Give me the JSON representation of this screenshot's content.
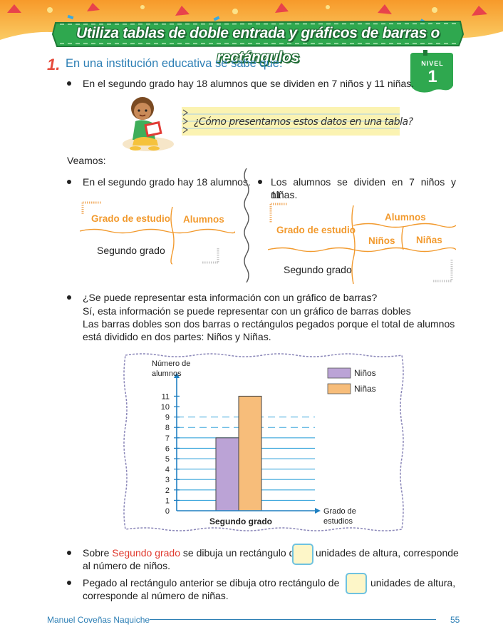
{
  "title": "Utiliza tablas de doble entrada y gráficos de barras o rectángulos",
  "level_badge": {
    "label": "NIVEL",
    "number": "1"
  },
  "exercise": {
    "number": "1.",
    "intro": "En una institución educativa se sabe que:",
    "fact": "En el segundo grado hay 18 alumnos que se dividen en 7 niños y 11 niñas."
  },
  "speech": "¿Cómo presentamos estos datos en una tabla?",
  "veamos": "Veamos:",
  "left_col": {
    "bullet": "En el segundo grado hay 18 alumnos.",
    "header_grado": "Grado de estudio",
    "header_alumnos": "Alumnos",
    "row_label": "Segundo grado"
  },
  "right_col": {
    "bullet_line1": "Los alumnos se dividen en 7 niños y 11",
    "bullet_line2": "niñas.",
    "header_alumnos": "Alumnos",
    "header_grado": "Grado de estudio",
    "header_ninos": "Niños",
    "header_ninas": "Niñas",
    "row_label": "Segundo grado"
  },
  "question": {
    "line1": "¿Se puede representar esta información con un gráfico de barras?",
    "line2": "Sí, esta información se puede representar con un gráfico de barras dobles",
    "line3": "Las barras dobles son dos barras o rectángulos pegados porque el total de alumnos",
    "line4": "está dividido en dos partes: Niños y Niñas."
  },
  "chart_data": {
    "type": "bar",
    "categories": [
      "Segundo grado"
    ],
    "series": [
      {
        "name": "Niños",
        "values": [
          7
        ],
        "color": "#bba3d6"
      },
      {
        "name": "Niñas",
        "values": [
          11
        ],
        "color": "#f7bd7a"
      }
    ],
    "ylabel_line1": "Número de",
    "ylabel_line2": "alumnos",
    "xlabel_line1": "Grado de",
    "xlabel_line2": "estudios",
    "ylim": [
      0,
      11
    ],
    "yticks": [
      "0",
      "1",
      "2",
      "3",
      "4",
      "5",
      "6",
      "7",
      "8",
      "9",
      "10",
      "11"
    ],
    "legend_position": "top-right"
  },
  "instructions": {
    "item1_pre": "Sobre",
    "item1_highlight": "Segundo grado",
    "item1_mid": "se dibuja un rectángulo de",
    "item1_post": "unidades de altura, corresponde",
    "item1_line2": "al número de niños.",
    "item2_pre": "Pegado al rectángulo anterior se dibuja otro rectángulo de",
    "item2_post": "unidades de altura,",
    "item2_line2": "corresponde al número de niñas."
  },
  "footer": {
    "author": "Manuel Coveñas Naquiche",
    "page": "55"
  },
  "colors": {
    "accent_green": "#2fa84f",
    "accent_blue": "#2d7fb5",
    "accent_orange": "#f29a2e",
    "red": "#e03a2f"
  }
}
